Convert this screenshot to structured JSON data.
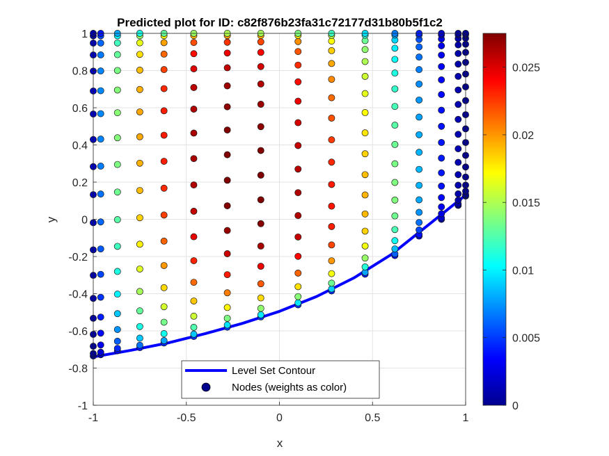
{
  "chart_data": {
    "type": "scatter",
    "title": "Predicted plot for ID: c82f876b23fa31c72177d31b80b5f1c2",
    "xlabel": "x",
    "ylabel": "y",
    "xlim": [
      -1,
      1
    ],
    "ylim": [
      -1,
      1
    ],
    "xticks": [
      "-1",
      "-0.5",
      "0",
      "0.5",
      "1"
    ],
    "yticks": [
      "-1",
      "-0.8",
      "-0.6",
      "-0.4",
      "-0.2",
      "0",
      "0.2",
      "0.4",
      "0.6",
      "0.8",
      "1"
    ],
    "grid": true,
    "colormap": "jet",
    "colorbar": {
      "range": [
        0,
        0.0275
      ],
      "ticks": [
        "0",
        "0.005",
        "0.01",
        "0.015",
        "0.02",
        "0.025"
      ]
    },
    "legend": {
      "placement": "bottom-center",
      "entries": [
        {
          "label": "Level Set Contour",
          "kind": "line",
          "color": "#0000ff"
        },
        {
          "label": "Nodes (weights as color)",
          "kind": "marker",
          "color": "#00008f"
        }
      ]
    },
    "contour": [
      [
        -1.0,
        -0.74
      ],
      [
        -0.8,
        -0.705
      ],
      [
        -0.6,
        -0.665
      ],
      [
        -0.4,
        -0.615
      ],
      [
        -0.2,
        -0.56
      ],
      [
        0.0,
        -0.495
      ],
      [
        0.2,
        -0.415
      ],
      [
        0.4,
        -0.315
      ],
      [
        0.6,
        -0.19
      ],
      [
        0.8,
        -0.03
      ],
      [
        1.0,
        0.13
      ]
    ],
    "node_columns": [
      {
        "x": -1.0,
        "y0": -0.735,
        "w": [
          0.0005,
          0.0006,
          0.0007,
          0.0009,
          0.001,
          0.0012,
          0.0013,
          0.0014,
          0.0015,
          0.0016,
          0.0017,
          0.0018,
          0.0018,
          0.0019,
          0.0018,
          0.0017,
          0.0016,
          0.0014,
          0.0011
        ]
      },
      {
        "x": -0.96,
        "y0": -0.728,
        "w": [
          0.0017,
          0.0023,
          0.003,
          0.0036,
          0.0042,
          0.0048,
          0.0053,
          0.0058,
          0.0062,
          0.0065,
          0.0068,
          0.007,
          0.0071,
          0.0071,
          0.007,
          0.0067,
          0.0062,
          0.0053,
          0.004
        ]
      },
      {
        "x": -0.87,
        "y0": -0.707,
        "w": [
          0.003,
          0.0045,
          0.006,
          0.0074,
          0.0088,
          0.01,
          0.0111,
          0.012,
          0.0127,
          0.0133,
          0.0137,
          0.0139,
          0.014,
          0.0139,
          0.0136,
          0.013,
          0.0121,
          0.0105,
          0.008
        ]
      },
      {
        "x": -0.75,
        "y0": -0.69,
        "w": [
          0.004,
          0.0065,
          0.0088,
          0.011,
          0.013,
          0.0148,
          0.0163,
          0.0175,
          0.0184,
          0.019,
          0.0193,
          0.0195,
          0.0195,
          0.0193,
          0.0189,
          0.018,
          0.0166,
          0.0145,
          0.011
        ]
      },
      {
        "x": -0.62,
        "y0": -0.665,
        "w": [
          0.0045,
          0.0078,
          0.0108,
          0.0135,
          0.016,
          0.0182,
          0.02,
          0.0214,
          0.0224,
          0.023,
          0.0233,
          0.0234,
          0.0233,
          0.023,
          0.0224,
          0.0213,
          0.0197,
          0.0172,
          0.013
        ]
      },
      {
        "x": -0.46,
        "y0": -0.63,
        "w": [
          0.0048,
          0.0088,
          0.0125,
          0.0158,
          0.0187,
          0.0212,
          0.0232,
          0.0247,
          0.0257,
          0.0262,
          0.0264,
          0.0264,
          0.0262,
          0.0258,
          0.025,
          0.0238,
          0.022,
          0.0192,
          0.0145
        ]
      },
      {
        "x": -0.28,
        "y0": -0.58,
        "w": [
          0.005,
          0.0095,
          0.0137,
          0.0174,
          0.0207,
          0.0234,
          0.0255,
          0.0268,
          0.0274,
          0.0276,
          0.0276,
          0.0274,
          0.0271,
          0.0266,
          0.0257,
          0.0245,
          0.0227,
          0.0198,
          0.015
        ]
      },
      {
        "x": -0.1,
        "y0": -0.525,
        "w": [
          0.005,
          0.0098,
          0.0142,
          0.0182,
          0.0217,
          0.0245,
          0.0264,
          0.0273,
          0.0276,
          0.0276,
          0.0274,
          0.0271,
          0.0267,
          0.0261,
          0.0252,
          0.024,
          0.0222,
          0.0194,
          0.0148
        ]
      },
      {
        "x": 0.1,
        "y0": -0.46,
        "w": [
          0.0048,
          0.0096,
          0.014,
          0.018,
          0.0214,
          0.024,
          0.0256,
          0.0262,
          0.0262,
          0.026,
          0.0256,
          0.0251,
          0.0245,
          0.0238,
          0.0229,
          0.0218,
          0.0202,
          0.0178,
          0.0138
        ]
      },
      {
        "x": 0.28,
        "y0": -0.385,
        "w": [
          0.0045,
          0.009,
          0.0132,
          0.0169,
          0.02,
          0.0222,
          0.0233,
          0.0236,
          0.0234,
          0.023,
          0.0225,
          0.0219,
          0.0212,
          0.0204,
          0.0195,
          0.0185,
          0.0172,
          0.0152,
          0.012
        ]
      },
      {
        "x": 0.46,
        "y0": -0.295,
        "w": [
          0.004,
          0.0078,
          0.0113,
          0.0144,
          0.0168,
          0.0184,
          0.0191,
          0.0192,
          0.0189,
          0.0184,
          0.0179,
          0.0172,
          0.0165,
          0.0158,
          0.015,
          0.0142,
          0.0132,
          0.0118,
          0.0095
        ]
      },
      {
        "x": 0.62,
        "y0": -0.195,
        "w": [
          0.0032,
          0.006,
          0.0085,
          0.0107,
          0.0123,
          0.0133,
          0.0138,
          0.0138,
          0.0136,
          0.0132,
          0.0127,
          0.0122,
          0.0117,
          0.0111,
          0.0105,
          0.0099,
          0.0092,
          0.0082,
          0.0068
        ]
      },
      {
        "x": 0.75,
        "y0": -0.09,
        "w": [
          0.0022,
          0.0038,
          0.0053,
          0.0065,
          0.0074,
          0.008,
          0.0083,
          0.0084,
          0.0083,
          0.0081,
          0.0078,
          0.0075,
          0.0072,
          0.0069,
          0.0065,
          0.0061,
          0.0057,
          0.0051,
          0.0043
        ]
      },
      {
        "x": 0.87,
        "y0": 0.0,
        "w": [
          0.0012,
          0.002,
          0.0027,
          0.0032,
          0.0036,
          0.0039,
          0.004,
          0.0041,
          0.004,
          0.0039,
          0.0038,
          0.0036,
          0.0035,
          0.0033,
          0.0031,
          0.0029,
          0.0027,
          0.0025,
          0.0021
        ]
      },
      {
        "x": 0.96,
        "y0": 0.075,
        "w": [
          0.0005,
          0.0008,
          0.001,
          0.0012,
          0.0013,
          0.0014,
          0.0014,
          0.0014,
          0.0014,
          0.0013,
          0.0013,
          0.0012,
          0.0012,
          0.0011,
          0.0011,
          0.001,
          0.001,
          0.0009,
          0.0008
        ]
      },
      {
        "x": 1.0,
        "y0": 0.125,
        "w": [
          0.0002,
          0.0003,
          0.0004,
          0.0004,
          0.0005,
          0.0005,
          0.0005,
          0.0005,
          0.0005,
          0.0005,
          0.0005,
          0.0004,
          0.0004,
          0.0004,
          0.0004,
          0.0004,
          0.0003,
          0.0003,
          0.0003
        ]
      }
    ]
  }
}
